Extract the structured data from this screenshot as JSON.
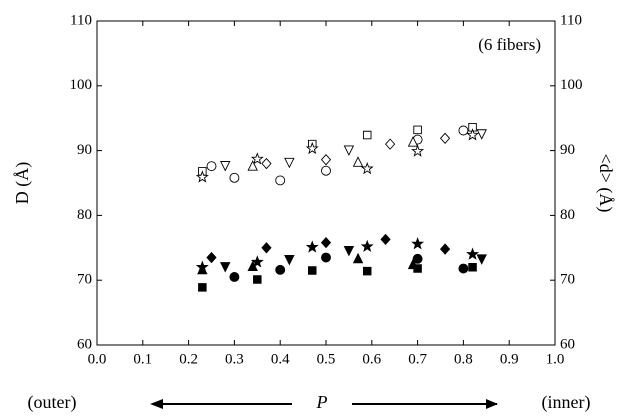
{
  "chart_data": {
    "type": "scatter",
    "y_label": "D (Å)",
    "y2_label": "<d> (Å)",
    "x_label": "P",
    "x_left_label": "(outer)",
    "x_right_label": "(inner)",
    "annotation": "(6 fibers)",
    "xlim": [
      0,
      1
    ],
    "xticks": [
      {
        "value": 0,
        "label": "0.0"
      },
      0.1,
      0.2,
      0.3,
      0.4,
      0.5,
      0.6,
      0.7,
      0.8,
      0.9,
      {
        "value": 1,
        "label": "1.0"
      }
    ],
    "ylim": [
      60,
      110
    ],
    "yticks": [
      60,
      70,
      80,
      90,
      100,
      110
    ],
    "y2lim": [
      60,
      110
    ],
    "y2ticks": [
      60,
      70,
      80,
      90,
      100,
      110
    ],
    "series": [
      {
        "marker": "square",
        "filled": false,
        "color": "#000",
        "x": [
          0.23,
          0.47,
          0.59,
          0.7,
          0.82
        ],
        "values": [
          86.8,
          91,
          92.4,
          93.2,
          93.6
        ]
      },
      {
        "marker": "circle",
        "filled": false,
        "color": "#000",
        "x": [
          0.25,
          0.3,
          0.4,
          0.5,
          0.7,
          0.8
        ],
        "values": [
          87.6,
          85.8,
          85.4,
          86.9,
          91.7,
          93.1
        ]
      },
      {
        "marker": "triangle-up",
        "filled": false,
        "color": "#000",
        "x": [
          0.34,
          0.57,
          0.69
        ],
        "values": [
          87.6,
          88.2,
          91.3
        ]
      },
      {
        "marker": "triangle-down",
        "filled": false,
        "color": "#000",
        "x": [
          0.28,
          0.42,
          0.55,
          0.84
        ],
        "values": [
          87.7,
          88.2,
          90.1,
          92.6
        ]
      },
      {
        "marker": "diamond",
        "filled": false,
        "color": "#000",
        "x": [
          0.37,
          0.5,
          0.64,
          0.76
        ],
        "values": [
          88,
          88.6,
          91,
          91.9
        ]
      },
      {
        "marker": "star",
        "filled": false,
        "color": "#000",
        "x": [
          0.23,
          0.35,
          0.47,
          0.59,
          0.7,
          0.82
        ],
        "values": [
          85.9,
          88.7,
          90.3,
          87.2,
          89.9,
          92.4
        ]
      },
      {
        "marker": "square",
        "filled": true,
        "color": "#000",
        "x": [
          0.23,
          0.35,
          0.47,
          0.59,
          0.7,
          0.82
        ],
        "values": [
          68.9,
          70.1,
          71.5,
          71.4,
          71.8,
          72
        ]
      },
      {
        "marker": "circle",
        "filled": true,
        "color": "#000",
        "x": [
          0.3,
          0.4,
          0.5,
          0.7,
          0.8
        ],
        "values": [
          70.5,
          71.6,
          73.5,
          73.3,
          71.8
        ]
      },
      {
        "marker": "triangle-up",
        "filled": true,
        "color": "#000",
        "x": [
          0.23,
          0.34,
          0.57,
          0.69
        ],
        "values": [
          71.6,
          72.1,
          73.3,
          72.4
        ]
      },
      {
        "marker": "triangle-down",
        "filled": true,
        "color": "#000",
        "x": [
          0.28,
          0.42,
          0.55,
          0.84
        ],
        "values": [
          72.1,
          73.2,
          74.6,
          73.3
        ]
      },
      {
        "marker": "diamond",
        "filled": true,
        "color": "#000",
        "x": [
          0.25,
          0.37,
          0.5,
          0.63,
          0.76
        ],
        "values": [
          73.5,
          75,
          75.8,
          76.3,
          74.8
        ]
      },
      {
        "marker": "star",
        "filled": true,
        "color": "#000",
        "x": [
          0.23,
          0.35,
          0.47,
          0.59,
          0.7,
          0.82
        ],
        "values": [
          72,
          72.8,
          75.1,
          75.2,
          75.6,
          74
        ]
      }
    ]
  }
}
